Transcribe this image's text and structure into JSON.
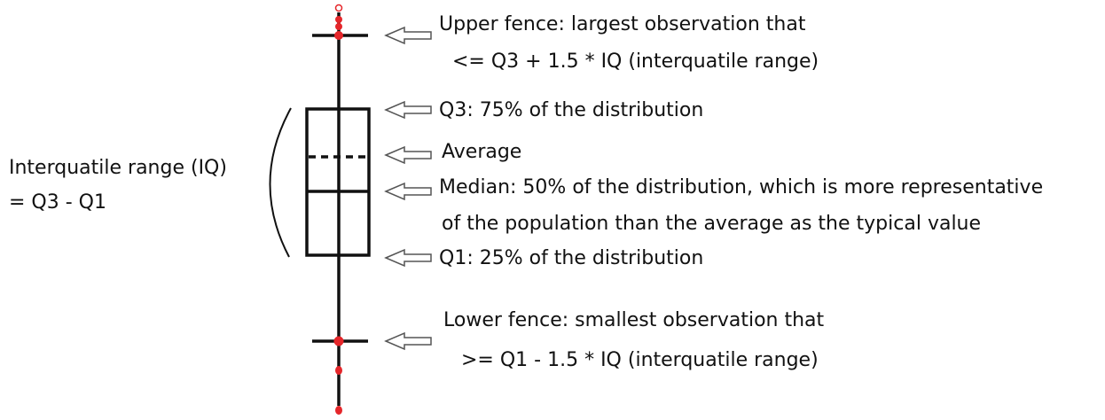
{
  "labels": {
    "iq": [
      "Interquatile range (IQ)",
      "= Q3 - Q1"
    ],
    "upper_fence": [
      "Upper fence: largest observation that",
      "<= Q3 + 1.5 * IQ (interquatile range)"
    ],
    "q3": "Q3: 75% of the distribution",
    "average": "Average",
    "median": [
      "Median: 50% of the distribution, which is more representative",
      "of the population than the average as the typical value"
    ],
    "q1": "Q1: 25% of the distribution",
    "lower_fence": [
      "Lower fence: smallest observation that",
      ">= Q1 - 1.5 * IQ (interquatile range)"
    ]
  }
}
